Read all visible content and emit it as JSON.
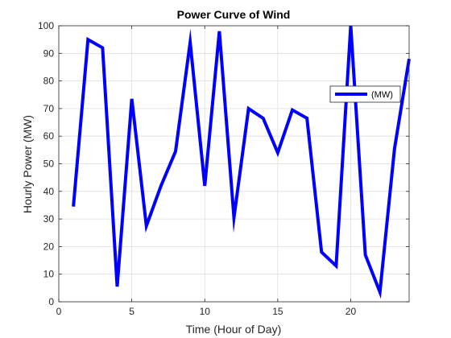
{
  "chart_data": {
    "type": "line",
    "title": "Power Curve of Wind",
    "xlabel": "Time (Hour of Day)",
    "ylabel": "Hourly Power (MW)",
    "xlim": [
      0,
      24
    ],
    "ylim": [
      0,
      100
    ],
    "xticks": [
      0,
      5,
      10,
      15,
      20
    ],
    "yticks": [
      0,
      10,
      20,
      30,
      40,
      50,
      60,
      70,
      80,
      90,
      100
    ],
    "grid": true,
    "legend_position": "right",
    "series": [
      {
        "name": "(MW)",
        "color": "#0000FF",
        "x": [
          1,
          2,
          3,
          4,
          5,
          6,
          7,
          8,
          9,
          10,
          11,
          12,
          13,
          14,
          15,
          16,
          17,
          18,
          19,
          20,
          21,
          22,
          23,
          24
        ],
        "values": [
          34.5,
          95,
          92,
          5.5,
          73.5,
          27.5,
          42,
          54.5,
          94,
          42,
          98,
          30.5,
          70,
          66.5,
          54,
          69.5,
          66.5,
          18,
          13,
          100,
          17,
          3.5,
          55.5,
          88
        ]
      }
    ]
  }
}
